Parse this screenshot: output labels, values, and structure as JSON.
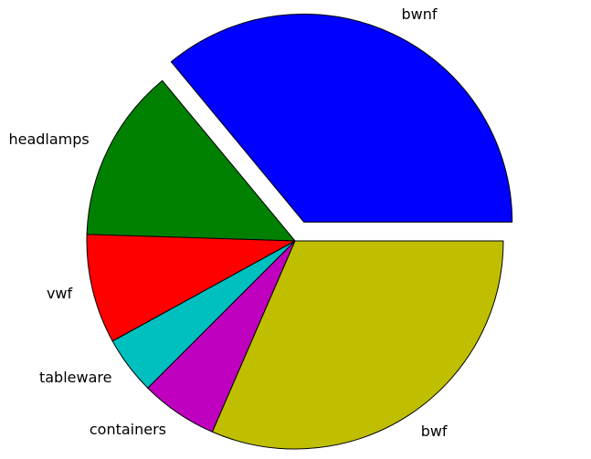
{
  "chart_data": {
    "type": "pie",
    "title": "",
    "slices": [
      {
        "label": "bwnf",
        "value": 36.0,
        "color": "#0000ff",
        "explode": 0.1
      },
      {
        "label": "headlamps",
        "value": 13.5,
        "color": "#008000",
        "explode": 0
      },
      {
        "label": "vwf",
        "value": 8.5,
        "color": "#ff0000",
        "explode": 0
      },
      {
        "label": "tableware",
        "value": 4.5,
        "color": "#00bfbf",
        "explode": 0
      },
      {
        "label": "containers",
        "value": 6.0,
        "color": "#bf00bf",
        "explode": 0
      },
      {
        "label": "bwf",
        "value": 31.5,
        "color": "#bfbf00",
        "explode": 0
      }
    ],
    "start_angle_deg": 0,
    "direction": "counterclockwise",
    "legend": "none",
    "grid": false
  }
}
